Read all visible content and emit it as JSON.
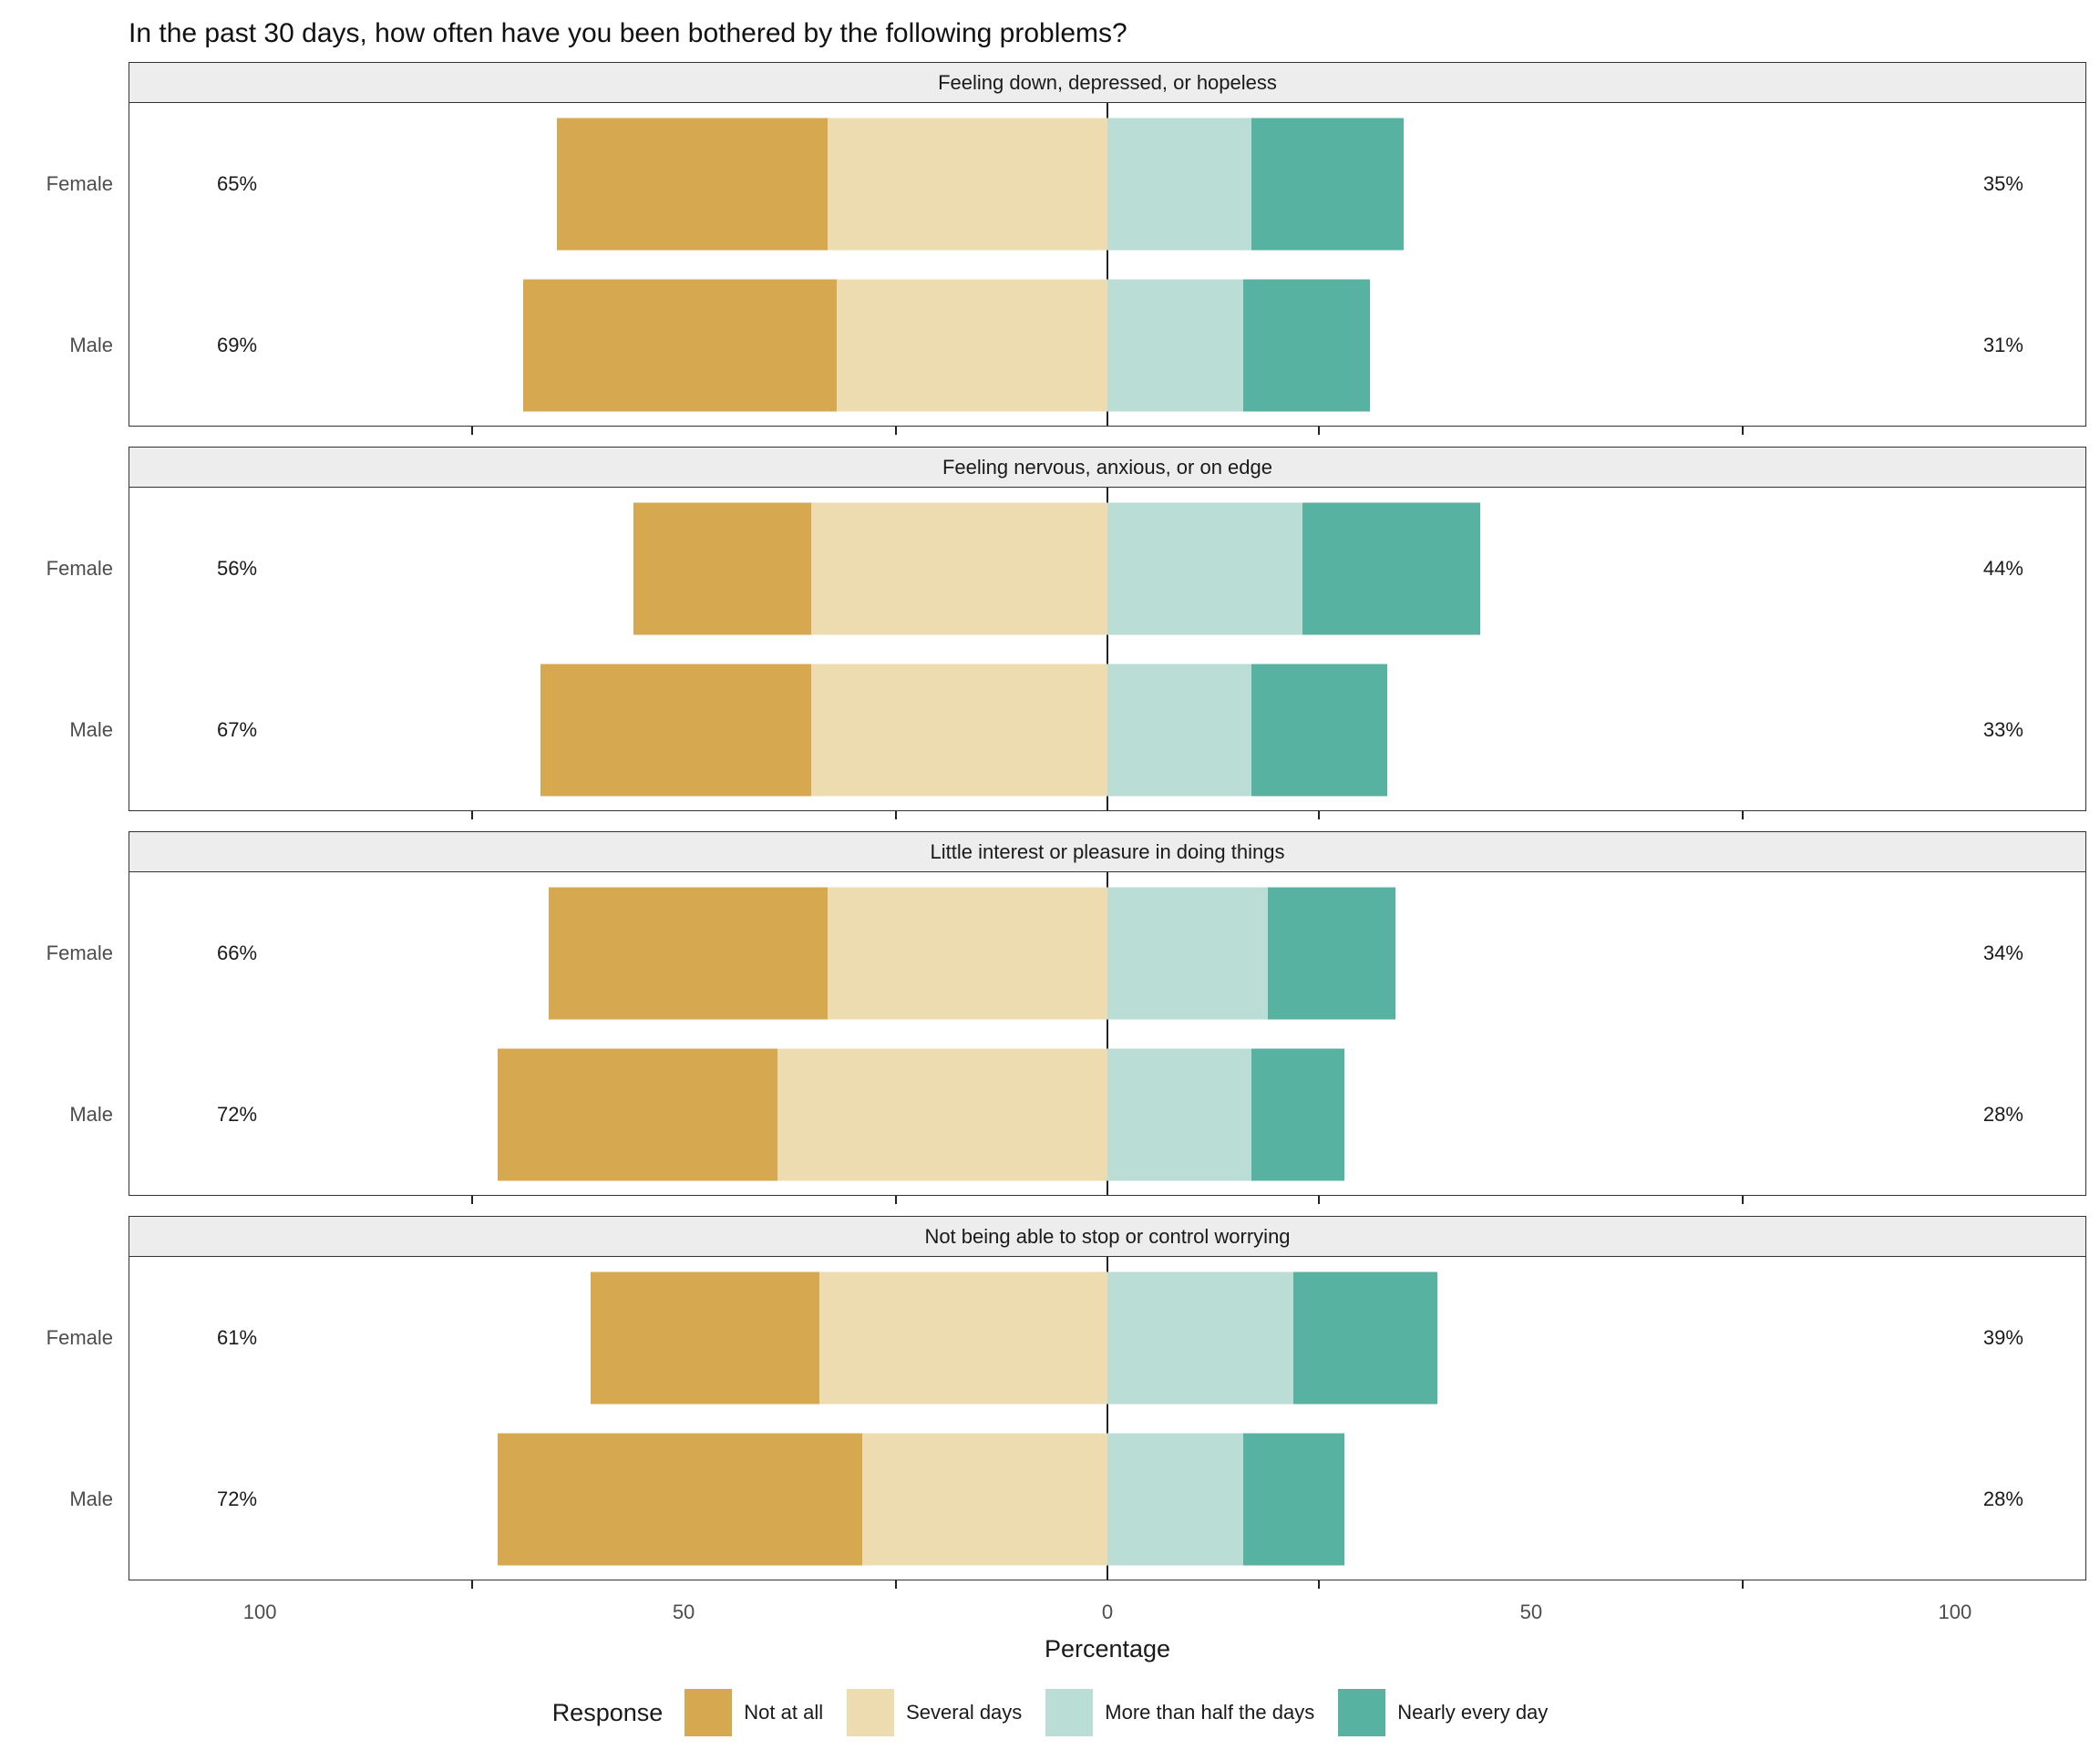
{
  "title": "In the past 30 days, how often have you been bothered by the following problems?",
  "x_axis": {
    "label": "Percentage",
    "axis_half_range": 115.5,
    "major_ticks": [
      {
        "value": -100,
        "label": "100"
      },
      {
        "value": -50,
        "label": "50"
      },
      {
        "value": 0,
        "label": "0"
      },
      {
        "value": 50,
        "label": "50"
      },
      {
        "value": 100,
        "label": "100"
      }
    ],
    "minor_ticks": [
      -75,
      -25,
      25,
      75
    ]
  },
  "legend": {
    "title": "Response"
  },
  "chart_data": {
    "type": "diverging_stacked_bar",
    "title": "In the past 30 days, how often have you been bothered by the following problems?",
    "xlabel": "Percentage",
    "axis_half_range": 115.5,
    "zero_line": true,
    "legend_position": "bottom",
    "levels": [
      {
        "label": "Not at all",
        "color": "#D6A84F",
        "side": "left"
      },
      {
        "label": "Several days",
        "color": "#EDDCB0",
        "side": "left"
      },
      {
        "label": "More than half the days",
        "color": "#BADDD6",
        "side": "right"
      },
      {
        "label": "Nearly every day",
        "color": "#58B2A2",
        "side": "right"
      }
    ],
    "facets": [
      {
        "title": "Feeling down, depressed, or hopeless",
        "rows": [
          {
            "group": "Female",
            "values": [
              32,
              33,
              17,
              18
            ],
            "left_total": 65,
            "right_total": 35,
            "left_label": "65%",
            "right_label": "35%"
          },
          {
            "group": "Male",
            "values": [
              37,
              32,
              16,
              15
            ],
            "left_total": 69,
            "right_total": 31,
            "left_label": "69%",
            "right_label": "31%"
          }
        ]
      },
      {
        "title": "Feeling nervous, anxious, or on edge",
        "rows": [
          {
            "group": "Female",
            "values": [
              21,
              35,
              23,
              21
            ],
            "left_total": 56,
            "right_total": 44,
            "left_label": "56%",
            "right_label": "44%"
          },
          {
            "group": "Male",
            "values": [
              32,
              35,
              17,
              16
            ],
            "left_total": 67,
            "right_total": 33,
            "left_label": "67%",
            "right_label": "33%"
          }
        ]
      },
      {
        "title": "Little interest or pleasure in doing things",
        "rows": [
          {
            "group": "Female",
            "values": [
              33,
              33,
              19,
              15
            ],
            "left_total": 66,
            "right_total": 34,
            "left_label": "66%",
            "right_label": "34%"
          },
          {
            "group": "Male",
            "values": [
              33,
              39,
              17,
              11
            ],
            "left_total": 72,
            "right_total": 28,
            "left_label": "72%",
            "right_label": "28%"
          }
        ]
      },
      {
        "title": "Not being able to stop or control worrying",
        "rows": [
          {
            "group": "Female",
            "values": [
              27,
              34,
              22,
              17
            ],
            "left_total": 61,
            "right_total": 39,
            "left_label": "61%",
            "right_label": "39%"
          },
          {
            "group": "Male",
            "values": [
              43,
              29,
              16,
              12
            ],
            "left_total": 72,
            "right_total": 28,
            "left_label": "72%",
            "right_label": "28%"
          }
        ]
      }
    ]
  }
}
